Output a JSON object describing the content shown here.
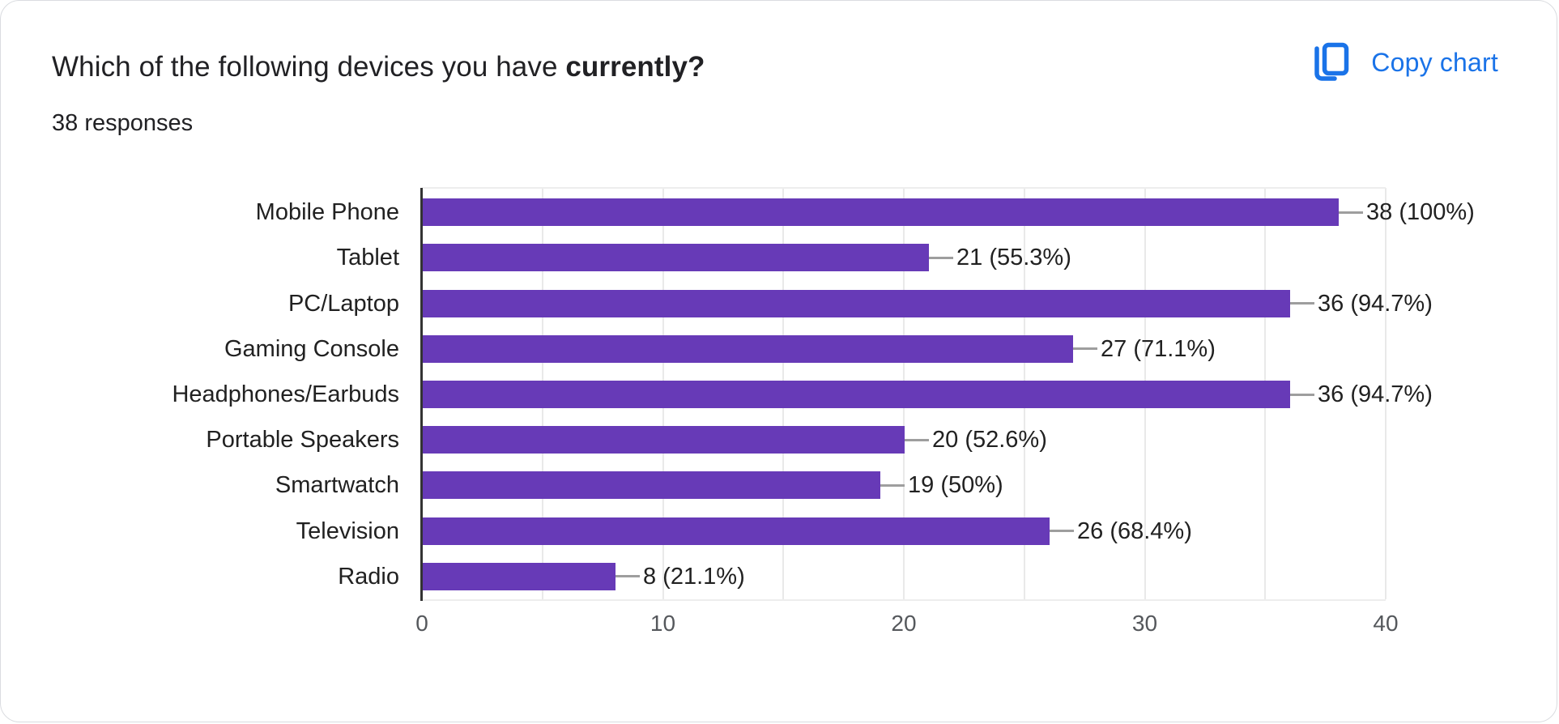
{
  "header": {
    "title_regular": "Which of the following devices you have ",
    "title_bold": "currently?",
    "responses_count": "38 responses"
  },
  "toolbar": {
    "copy_chart_label": "Copy chart",
    "copy_icon": "copy-icon"
  },
  "colors": {
    "bar_purple": "#673ab7",
    "accent_blue": "#1a73e8",
    "grid": "#e9e9e9",
    "axis": "#333333",
    "connector": "#9e9e9e",
    "text_dark": "#212121",
    "tick_gray": "#55585c",
    "card_border": "#dadce0"
  },
  "chart_data": {
    "type": "bar",
    "orientation": "horizontal",
    "title": "Which of the following devices you have currently?",
    "subtitle": "38 responses",
    "categories": [
      "Mobile Phone",
      "Tablet",
      "PC/Laptop",
      "Gaming Console",
      "Headphones/Earbuds",
      "Portable Speakers",
      "Smartwatch",
      "Television",
      "Radio"
    ],
    "values": [
      38,
      21,
      36,
      27,
      36,
      20,
      19,
      26,
      8
    ],
    "value_labels": [
      "38 (100%)",
      "21 (55.3%)",
      "36 (94.7%)",
      "27 (71.1%)",
      "36 (94.7%)",
      "20 (52.6%)",
      "19 (50%)",
      "26 (68.4%)",
      "8 (21.1%)"
    ],
    "xlabel": "",
    "ylabel": "",
    "xlim": [
      0,
      40
    ],
    "x_ticks": [
      0,
      10,
      20,
      30,
      40
    ],
    "grid_step": 5,
    "grid": "vertical",
    "legend_position": "none",
    "bar_color": "#673ab7"
  }
}
